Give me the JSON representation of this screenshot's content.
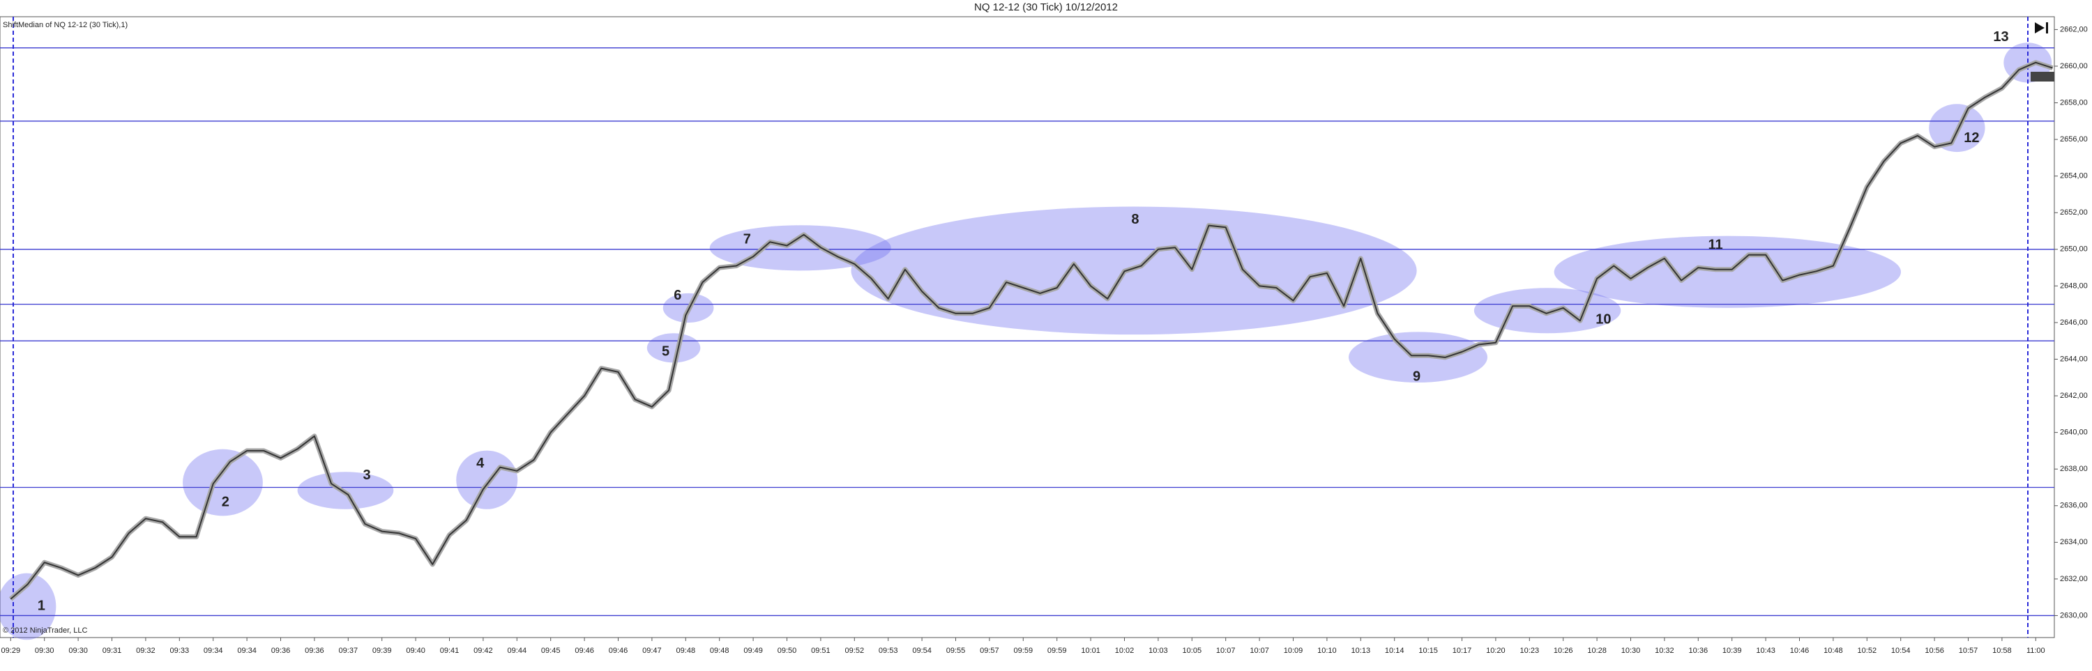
{
  "chart_data": {
    "type": "line",
    "title": "NQ 12-12 (30 Tick)  10/12/2012",
    "footer": "© 2012 NinjaTrader, LLC",
    "categories": [
      "09:29",
      null,
      "09:30",
      null,
      "09:30",
      null,
      "09:31",
      null,
      "09:32",
      null,
      "09:33",
      null,
      "09:34",
      null,
      "09:34",
      null,
      "09:36",
      null,
      "09:36",
      null,
      "09:37",
      null,
      "09:39",
      null,
      "09:40",
      null,
      "09:41",
      null,
      "09:42",
      null,
      "09:44",
      null,
      "09:45",
      null,
      "09:46",
      null,
      "09:46",
      null,
      "09:47",
      null,
      "09:48",
      null,
      "09:48",
      null,
      "09:49",
      null,
      "09:50",
      null,
      "09:51",
      null,
      "09:52",
      null,
      "09:53",
      null,
      "09:54",
      null,
      "09:55",
      null,
      "09:57",
      null,
      "09:59",
      null,
      "09:59",
      null,
      "10:01",
      null,
      "10:02",
      null,
      "10:03",
      null,
      "10:05",
      null,
      "10:07",
      null,
      "10:07",
      null,
      "10:09",
      null,
      "10:10",
      null,
      "10:13",
      null,
      "10:14",
      null,
      "10:15",
      null,
      "10:17",
      null,
      "10:20",
      null,
      "10:23",
      null,
      "10:26",
      null,
      "10:28",
      null,
      "10:30",
      null,
      "10:32",
      null,
      "10:36",
      null,
      "10:39",
      null,
      "10:43",
      null,
      "10:46",
      null,
      "10:48",
      null,
      "10:52",
      null,
      "10:54",
      null,
      "10:56",
      null,
      "10:57",
      null,
      "10:58",
      null,
      "11:00",
      null
    ],
    "series": [
      {
        "name": "ShiftMedian of NQ 12-12 (30 Tick),1)",
        "color": "#333333",
        "halo_color": "#a8a8a8",
        "values": [
          2630.9,
          2631.7,
          2632.9,
          2632.6,
          2632.2,
          2632.6,
          2633.2,
          2634.5,
          2635.3,
          2635.1,
          2634.3,
          2634.3,
          2637.2,
          2638.4,
          2639,
          2639,
          2638.6,
          2639.1,
          2639.8,
          2637.2,
          2636.6,
          2635,
          2634.6,
          2634.5,
          2634.2,
          2632.8,
          2634.4,
          2635.2,
          2636.9,
          2638.1,
          2637.9,
          2638.5,
          2640,
          2641,
          2642,
          2643.5,
          2643.3,
          2641.8,
          2641.4,
          2642.3,
          2646.4,
          2648.2,
          2649,
          2649.1,
          2649.6,
          2650.4,
          2650.2,
          2650.8,
          2650.1,
          2649.6,
          2649.2,
          2648.4,
          2647.3,
          2648.9,
          2647.7,
          2646.8,
          2646.5,
          2646.5,
          2646.8,
          2648.2,
          2647.9,
          2647.6,
          2647.9,
          2649.2,
          2648,
          2647.3,
          2648.8,
          2649.1,
          2650,
          2650.1,
          2648.9,
          2651.3,
          2651.2,
          2648.9,
          2648,
          2647.9,
          2647.2,
          2648.5,
          2648.7,
          2646.9,
          2649.5,
          2646.5,
          2645.1,
          2644.2,
          2644.2,
          2644.1,
          2644.4,
          2644.8,
          2644.9,
          2646.9,
          2646.9,
          2646.5,
          2646.8,
          2646.1,
          2648.4,
          2649.1,
          2648.4,
          2649,
          2649.5,
          2648.3,
          2649,
          2648.9,
          2648.9,
          2649.7,
          2649.7,
          2648.3,
          2648.6,
          2648.8,
          2649.1,
          2651.2,
          2653.4,
          2654.8,
          2655.8,
          2656.2,
          2655.6,
          2655.8,
          2657.7,
          2658.3,
          2658.8,
          2659.8,
          2660.2,
          2659.9
        ]
      }
    ],
    "ylim": [
      2628.8,
      2662.7
    ],
    "yticks": [
      {
        "value": 2630,
        "label": "2630,00"
      },
      {
        "value": 2632,
        "label": "2632,00"
      },
      {
        "value": 2634,
        "label": "2634,00"
      },
      {
        "value": 2636,
        "label": "2636,00"
      },
      {
        "value": 2638,
        "label": "2638,00"
      },
      {
        "value": 2640,
        "label": "2640,00"
      },
      {
        "value": 2642,
        "label": "2642,00"
      },
      {
        "value": 2644,
        "label": "2644,00"
      },
      {
        "value": 2646,
        "label": "2646,00"
      },
      {
        "value": 2648,
        "label": "2648,00"
      },
      {
        "value": 2650,
        "label": "2650,00"
      },
      {
        "value": 2652,
        "label": "2652,00"
      },
      {
        "value": 2654,
        "label": "2654,00"
      },
      {
        "value": 2656,
        "label": "2656,00"
      },
      {
        "value": 2658,
        "label": "2658,00"
      },
      {
        "value": 2660,
        "label": "2660,00"
      },
      {
        "value": 2662,
        "label": "2662,00"
      }
    ],
    "hlines": [
      2661,
      2657,
      2650,
      2647,
      2645,
      2637,
      2630
    ],
    "hline_color": "#3b3bd0",
    "annotations": [
      "1",
      "2",
      "3",
      "4",
      "5",
      "6",
      "7",
      "8",
      "9",
      "10",
      "11",
      "12",
      "13"
    ],
    "annotation_color": "rgba(110,110,240,0.38)",
    "grid": false
  }
}
